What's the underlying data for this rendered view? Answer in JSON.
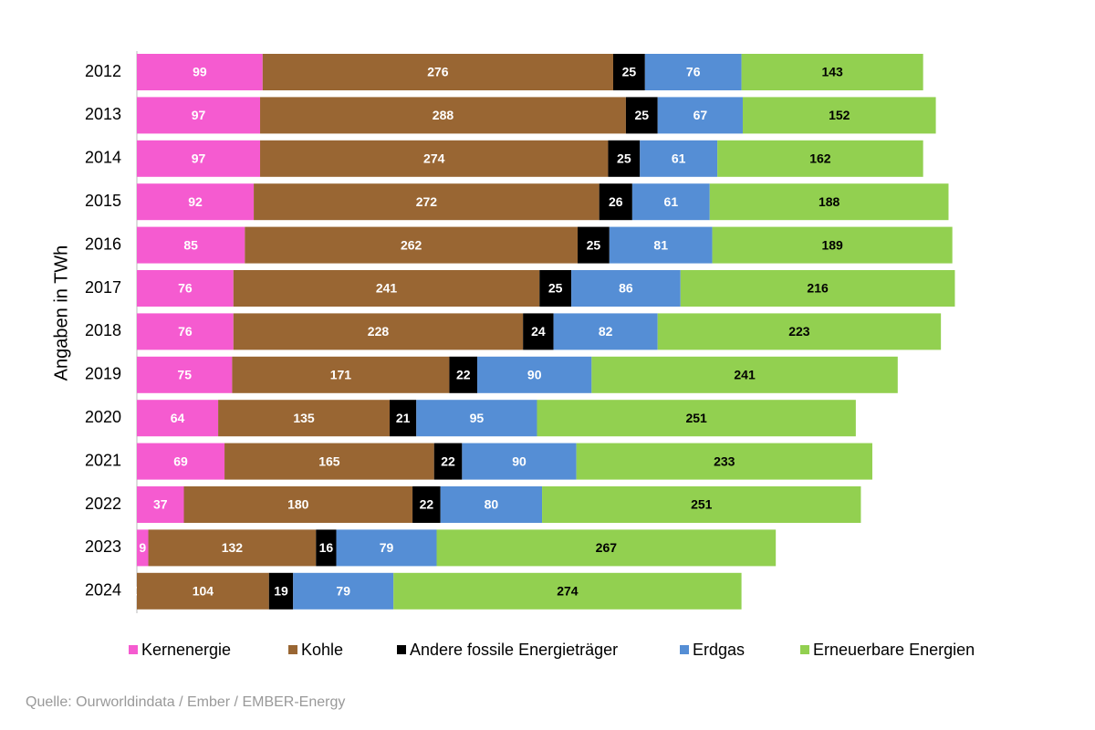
{
  "chart_data": {
    "type": "stacked-bar-horizontal",
    "y_axis_label": "Angaben in  TWh",
    "categories": [
      "2012",
      "2013",
      "2014",
      "2015",
      "2016",
      "2017",
      "2018",
      "2019",
      "2020",
      "2021",
      "2022",
      "2023",
      "2024"
    ],
    "series": [
      {
        "name": "Kernenergie",
        "color": "#f55bd0",
        "label_color": "#ffffff",
        "values": [
          99,
          97,
          97,
          92,
          85,
          76,
          76,
          75,
          64,
          69,
          37,
          9,
          0
        ]
      },
      {
        "name": "Kohle",
        "color": "#996633",
        "label_color": "#ffffff",
        "values": [
          276,
          288,
          274,
          272,
          262,
          241,
          228,
          171,
          135,
          165,
          180,
          132,
          104
        ]
      },
      {
        "name": "Andere fossile Energieträger",
        "color": "#000000",
        "label_color": "#ffffff",
        "values": [
          25,
          25,
          25,
          26,
          25,
          25,
          24,
          22,
          21,
          22,
          22,
          16,
          19
        ]
      },
      {
        "name": "Erdgas",
        "color": "#558ed5",
        "label_color": "#ffffff",
        "values": [
          76,
          67,
          61,
          61,
          81,
          86,
          82,
          90,
          95,
          90,
          80,
          79,
          79
        ]
      },
      {
        "name": "Erneuerbare Energien",
        "color": "#92d050",
        "label_color": "#000000",
        "values": [
          143,
          152,
          162,
          188,
          189,
          216,
          223,
          241,
          251,
          233,
          251,
          267,
          274
        ]
      }
    ],
    "source": "Quelle: Ourworldindata / Ember / EMBER-Energy"
  }
}
